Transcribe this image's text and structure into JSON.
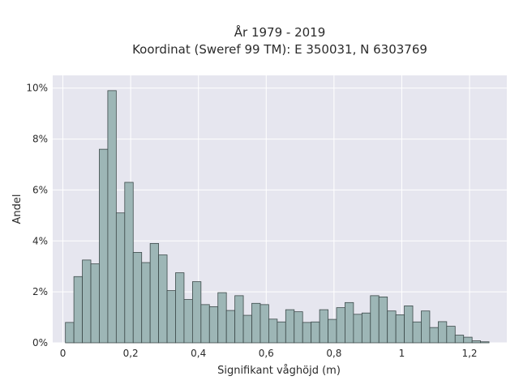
{
  "chart_data": {
    "type": "bar",
    "title_line1": "År 1979 - 2019",
    "title_line2": "Koordinat (Sweref 99 TM): E 350031, N 6303769",
    "xlabel": "Signifikant våghöjd (m)",
    "ylabel": "Andel",
    "xlim": [
      -0.03,
      1.31
    ],
    "ylim": [
      0,
      10.5
    ],
    "x_ticks": [
      {
        "value": 0,
        "label": "0"
      },
      {
        "value": 0.2,
        "label": "0,2"
      },
      {
        "value": 0.4,
        "label": "0,4"
      },
      {
        "value": 0.6,
        "label": "0,6"
      },
      {
        "value": 0.8,
        "label": "0,8"
      },
      {
        "value": 1.0,
        "label": "1"
      },
      {
        "value": 1.2,
        "label": "1,2"
      }
    ],
    "y_ticks": [
      {
        "value": 0,
        "label": "0%"
      },
      {
        "value": 2,
        "label": "2%"
      },
      {
        "value": 4,
        "label": "4%"
      },
      {
        "value": 6,
        "label": "6%"
      },
      {
        "value": 8,
        "label": "8%"
      },
      {
        "value": 10,
        "label": "10%"
      }
    ],
    "bin_start": 0.0075,
    "bin_width": 0.025,
    "values": [
      0.8,
      2.6,
      3.25,
      3.1,
      7.6,
      9.9,
      5.1,
      6.3,
      3.55,
      3.15,
      3.9,
      3.45,
      2.05,
      2.75,
      1.7,
      2.4,
      1.5,
      1.42,
      1.97,
      1.27,
      1.85,
      1.08,
      1.55,
      1.5,
      0.93,
      0.82,
      1.3,
      1.22,
      0.8,
      0.82,
      1.3,
      0.92,
      1.38,
      1.58,
      1.12,
      1.17,
      1.85,
      1.8,
      1.25,
      1.1,
      1.45,
      0.82,
      1.25,
      0.6,
      0.83,
      0.65,
      0.3,
      0.22,
      0.08,
      0.04
    ],
    "grid": true,
    "legend": "none",
    "colors": {
      "bar_fill": "#9db6b6",
      "bar_stroke": "#3d4a4a",
      "plot_bg": "#e6e6ef",
      "grid": "#ffffff"
    }
  }
}
